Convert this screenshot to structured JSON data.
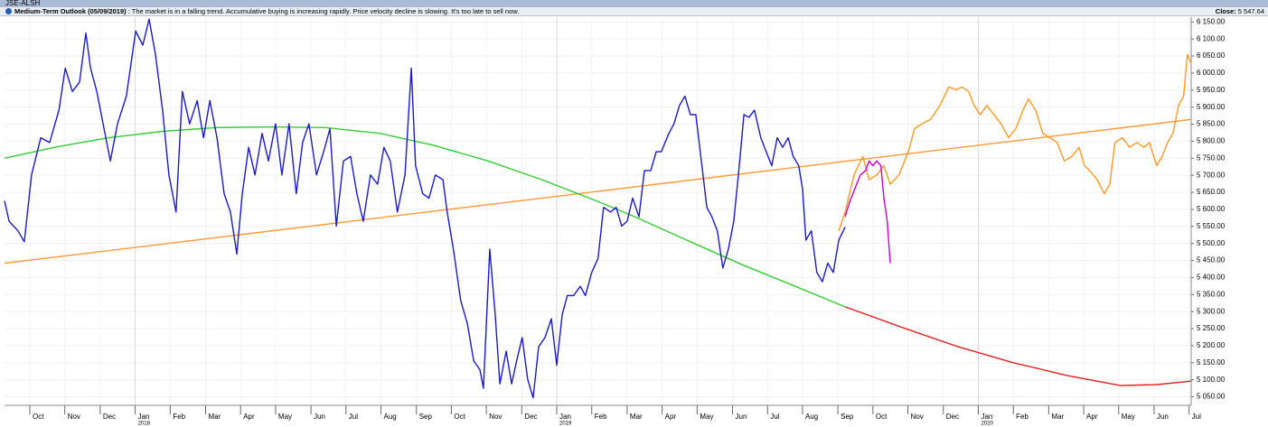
{
  "header": {
    "symbol": "JSE-ALSH",
    "outlook_title": "Medium-Term Outlook (05/09/2019)",
    "outlook_text": ": The market is in a falling trend. Accumulative buying is increasing rapidly. Price velocity decline is slowing. It's too late to sell now.",
    "close_label": "Close:",
    "close_value": "5 547.64"
  },
  "chart_data": {
    "type": "line",
    "grid": true,
    "xlim": [
      2017.69,
      2020.505
    ],
    "ylim": [
      5025,
      6164
    ],
    "xticks": [
      {
        "value": 2017.75,
        "label": "Oct"
      },
      {
        "value": 2017.833,
        "label": "Nov"
      },
      {
        "value": 2017.917,
        "label": "Dec"
      },
      {
        "value": 2018,
        "label": "Jan",
        "year": "2018"
      },
      {
        "value": 2018.083,
        "label": "Feb"
      },
      {
        "value": 2018.167,
        "label": "Mar"
      },
      {
        "value": 2018.25,
        "label": "Apr"
      },
      {
        "value": 2018.333,
        "label": "May"
      },
      {
        "value": 2018.417,
        "label": "Jun"
      },
      {
        "value": 2018.5,
        "label": "Jul"
      },
      {
        "value": 2018.583,
        "label": "Aug"
      },
      {
        "value": 2018.667,
        "label": "Sep"
      },
      {
        "value": 2018.75,
        "label": "Oct"
      },
      {
        "value": 2018.833,
        "label": "Nov"
      },
      {
        "value": 2018.917,
        "label": "Dec"
      },
      {
        "value": 2019,
        "label": "Jan",
        "year": "2019"
      },
      {
        "value": 2019.083,
        "label": "Feb"
      },
      {
        "value": 2019.167,
        "label": "Mar"
      },
      {
        "value": 2019.25,
        "label": "Apr"
      },
      {
        "value": 2019.333,
        "label": "May"
      },
      {
        "value": 2019.417,
        "label": "Jun"
      },
      {
        "value": 2019.5,
        "label": "Jul"
      },
      {
        "value": 2019.583,
        "label": "Aug"
      },
      {
        "value": 2019.667,
        "label": "Sep"
      },
      {
        "value": 2019.75,
        "label": "Oct"
      },
      {
        "value": 2019.833,
        "label": "Nov"
      },
      {
        "value": 2019.917,
        "label": "Dec"
      },
      {
        "value": 2020,
        "label": "Jan",
        "year": "2020"
      },
      {
        "value": 2020.083,
        "label": "Feb"
      },
      {
        "value": 2020.167,
        "label": "Mar"
      },
      {
        "value": 2020.25,
        "label": "Apr"
      },
      {
        "value": 2020.333,
        "label": "May"
      },
      {
        "value": 2020.417,
        "label": "Jun"
      },
      {
        "value": 2020.5,
        "label": "Jul"
      }
    ],
    "yticks": [
      {
        "value": 5050,
        "label": "5 050.00"
      },
      {
        "value": 5100,
        "label": "5 100.00"
      },
      {
        "value": 5150,
        "label": "5 150.00"
      },
      {
        "value": 5200,
        "label": "5 200.00"
      },
      {
        "value": 5250,
        "label": "5 250.00"
      },
      {
        "value": 5300,
        "label": "5 300.00"
      },
      {
        "value": 5350,
        "label": "5 350.00"
      },
      {
        "value": 5400,
        "label": "5 400.00"
      },
      {
        "value": 5450,
        "label": "5 450.00"
      },
      {
        "value": 5500,
        "label": "5 500.00"
      },
      {
        "value": 5550,
        "label": "5 550.00"
      },
      {
        "value": 5600,
        "label": "5 600.00"
      },
      {
        "value": 5650,
        "label": "5 650.00"
      },
      {
        "value": 5700,
        "label": "5 700.00"
      },
      {
        "value": 5750,
        "label": "5 750.00"
      },
      {
        "value": 5800,
        "label": "5 800.00"
      },
      {
        "value": 5850,
        "label": "5 850.00"
      },
      {
        "value": 5900,
        "label": "5 900.00"
      },
      {
        "value": 5950,
        "label": "5 950.00"
      },
      {
        "value": 6000,
        "label": "6 000.00"
      },
      {
        "value": 6050,
        "label": "6 050.00"
      },
      {
        "value": 6100,
        "label": "6 100.00"
      },
      {
        "value": 6150,
        "label": "6 150.00"
      }
    ],
    "series": [
      {
        "color": "#ff9933",
        "x": [
          2017.69,
          2020.505
        ],
        "values": [
          5442,
          5864
        ]
      },
      {
        "color": "#33cc33",
        "x": [
          2017.69,
          2017.808,
          2017.937,
          2018.065,
          2018.194,
          2018.322,
          2018.451,
          2018.58,
          2018.708,
          2018.837,
          2018.965,
          2019.094,
          2019.18,
          2019.308,
          2019.437,
          2019.566,
          2019.684
        ],
        "values": [
          5750,
          5782,
          5810,
          5829,
          5840,
          5842,
          5840,
          5823,
          5788,
          5742,
          5687,
          5625,
          5581,
          5510,
          5439,
          5374,
          5314
        ]
      },
      {
        "color": "#e02020",
        "x": [
          2019.684,
          2019.823,
          2019.952,
          2020.08,
          2020.209,
          2020.337,
          2020.423,
          2020.505
        ],
        "values": [
          5314,
          5252,
          5197,
          5151,
          5113,
          5083,
          5086,
          5096
        ]
      },
      {
        "color": "#1a1acc",
        "x": [
          2017.69,
          2017.701,
          2017.722,
          2017.737,
          2017.754,
          2017.776,
          2017.797,
          2017.819,
          2017.834,
          2017.851,
          2017.868,
          2017.883,
          2017.894,
          2017.909,
          2017.926,
          2017.941,
          2017.958,
          2017.979,
          2018.001,
          2018.018,
          2018.033,
          2018.048,
          2018.065,
          2018.08,
          2018.097,
          2018.112,
          2018.129,
          2018.147,
          2018.162,
          2018.177,
          2018.194,
          2018.211,
          2018.226,
          2018.241,
          2018.254,
          2018.269,
          2018.284,
          2018.301,
          2018.316,
          2018.333,
          2018.348,
          2018.365,
          2018.382,
          2018.397,
          2018.412,
          2018.43,
          2018.447,
          2018.462,
          2018.477,
          2018.494,
          2018.511,
          2018.526,
          2018.541,
          2018.558,
          2018.575,
          2018.59,
          2018.605,
          2018.622,
          2018.64,
          2018.655,
          2018.665,
          2018.682,
          2018.697,
          2018.712,
          2018.73,
          2018.74,
          2018.755,
          2018.772,
          2018.788,
          2018.803,
          2018.818,
          2018.826,
          2018.841,
          2018.854,
          2018.865,
          2018.88,
          2018.893,
          2018.905,
          2018.918,
          2018.931,
          2018.944,
          2018.957,
          2018.972,
          2018.987,
          2019.0,
          2019.013,
          2019.025,
          2019.04,
          2019.056,
          2019.068,
          2019.083,
          2019.098,
          2019.111,
          2019.128,
          2019.141,
          2019.154,
          2019.167,
          2019.18,
          2019.195,
          2019.208,
          2019.223,
          2019.236,
          2019.248,
          2019.266,
          2019.278,
          2019.291,
          2019.304,
          2019.317,
          2019.33,
          2019.343,
          2019.356,
          2019.368,
          2019.381,
          2019.394,
          2019.407,
          2019.42,
          2019.433,
          2019.444,
          2019.456,
          2019.469,
          2019.484,
          2019.497,
          2019.51,
          2019.523,
          2019.536,
          2019.549,
          2019.561,
          2019.574,
          2019.583,
          2019.591,
          2019.604,
          2019.617,
          2019.63,
          2019.643,
          2019.656,
          2019.669,
          2019.684
        ],
        "values": [
          5625,
          5565,
          5537,
          5505,
          5701,
          5810,
          5796,
          5891,
          6014,
          5946,
          5973,
          6117,
          6014,
          5946,
          5837,
          5742,
          5851,
          5932,
          6123,
          6082,
          6158,
          6055,
          5891,
          5701,
          5592,
          5946,
          5851,
          5919,
          5810,
          5919,
          5810,
          5646,
          5592,
          5469,
          5646,
          5782,
          5701,
          5823,
          5742,
          5851,
          5701,
          5851,
          5646,
          5796,
          5851,
          5701,
          5769,
          5837,
          5551,
          5742,
          5755,
          5646,
          5565,
          5701,
          5674,
          5782,
          5742,
          5592,
          5701,
          6014,
          5728,
          5646,
          5633,
          5701,
          5687,
          5592,
          5483,
          5333,
          5265,
          5156,
          5129,
          5075,
          5483,
          5292,
          5088,
          5184,
          5088,
          5156,
          5224,
          5102,
          5047,
          5197,
          5224,
          5279,
          5143,
          5292,
          5347,
          5347,
          5374,
          5347,
          5415,
          5456,
          5606,
          5592,
          5606,
          5551,
          5565,
          5633,
          5578,
          5714,
          5714,
          5769,
          5769,
          5823,
          5851,
          5905,
          5932,
          5878,
          5878,
          5742,
          5606,
          5578,
          5537,
          5428,
          5483,
          5565,
          5728,
          5878,
          5870,
          5891,
          5810,
          5769,
          5728,
          5810,
          5782,
          5810,
          5755,
          5728,
          5660,
          5510,
          5537,
          5415,
          5388,
          5442,
          5415,
          5510,
          5548
        ]
      },
      {
        "color": "#ff9922",
        "x": [
          2019.669,
          2019.684,
          2019.705,
          2019.726,
          2019.741,
          2019.759,
          2019.776,
          2019.791,
          2019.812,
          2019.834,
          2019.849,
          2019.866,
          2019.887,
          2019.909,
          2019.93,
          2019.947,
          2019.962,
          2019.977,
          2019.99,
          2020.005,
          2020.02,
          2020.037,
          2020.054,
          2020.072,
          2020.089,
          2020.106,
          2020.119,
          2020.136,
          2020.153,
          2020.17,
          2020.187,
          2020.204,
          2020.222,
          2020.239,
          2020.252,
          2020.264,
          2020.282,
          2020.299,
          2020.312,
          2020.324,
          2020.342,
          2020.359,
          2020.376,
          2020.393,
          2020.406,
          2020.423,
          2020.436,
          2020.449,
          2020.462,
          2020.475,
          2020.487,
          2020.496,
          2020.505
        ],
        "values": [
          5537,
          5592,
          5701,
          5755,
          5687,
          5701,
          5728,
          5674,
          5701,
          5769,
          5837,
          5851,
          5864,
          5905,
          5959,
          5951,
          5959,
          5946,
          5905,
          5878,
          5905,
          5878,
          5851,
          5810,
          5837,
          5891,
          5924,
          5891,
          5823,
          5810,
          5796,
          5742,
          5755,
          5782,
          5728,
          5714,
          5687,
          5646,
          5674,
          5796,
          5810,
          5782,
          5796,
          5782,
          5796,
          5728,
          5755,
          5796,
          5823,
          5905,
          5932,
          6055,
          6028
        ]
      },
      {
        "color": "#cc00cc",
        "x": [
          2019.684,
          2019.694,
          2019.707,
          2019.72,
          2019.733,
          2019.741,
          2019.75,
          2019.759,
          2019.769,
          2019.776,
          2019.784,
          2019.791
        ],
        "values": [
          5578,
          5619,
          5660,
          5701,
          5714,
          5742,
          5728,
          5742,
          5728,
          5633,
          5565,
          5442
        ]
      }
    ]
  }
}
